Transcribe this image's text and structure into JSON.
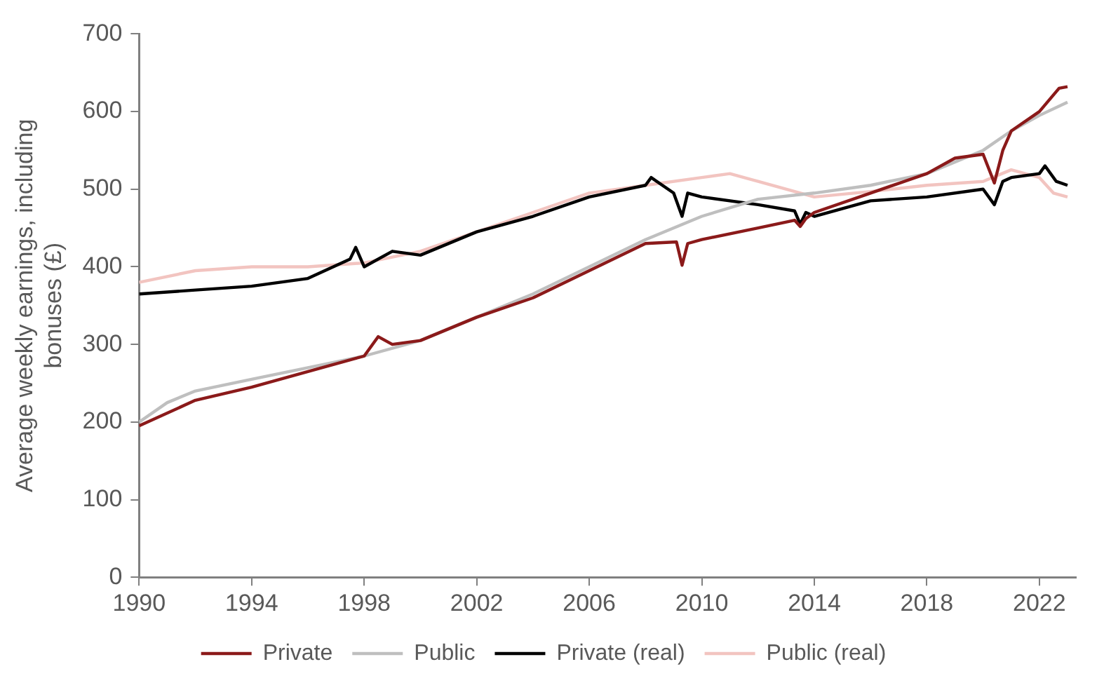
{
  "chart_data": {
    "type": "line",
    "ylabel": "Average weekly earnings, including bonuses (£)",
    "xlim": [
      1990,
      2023.3
    ],
    "xticks": [
      1990,
      1994,
      1998,
      2002,
      2006,
      2010,
      2014,
      2018,
      2022
    ],
    "ylim": [
      0,
      700
    ],
    "yticks": [
      0,
      100,
      200,
      300,
      400,
      500,
      600,
      700
    ],
    "grid": false,
    "legend": "bottom",
    "marker": "none",
    "line_style": "solid",
    "series": [
      {
        "name": "Private",
        "color": "#8b1a1a",
        "x": [
          1990,
          1992,
          1994,
          1996,
          1998,
          1998.5,
          1999,
          2000,
          2002,
          2004,
          2006,
          2008,
          2009.1,
          2009.3,
          2009.5,
          2010,
          2012,
          2013.3,
          2013.5,
          2013.7,
          2014,
          2016,
          2018,
          2019,
          2020,
          2020.4,
          2020.7,
          2021,
          2022,
          2022.7,
          2023
        ],
        "values": [
          195,
          228,
          245,
          265,
          285,
          310,
          300,
          305,
          335,
          360,
          395,
          430,
          432,
          402,
          430,
          435,
          450,
          460,
          452,
          462,
          470,
          495,
          520,
          540,
          545,
          508,
          550,
          575,
          600,
          630,
          632
        ]
      },
      {
        "name": "Public",
        "color": "#bfbfbf",
        "x": [
          1990,
          1991,
          1992,
          1994,
          1996,
          1998,
          2000,
          2002,
          2004,
          2006,
          2008,
          2010,
          2012,
          2014,
          2016,
          2018,
          2020,
          2021,
          2022,
          2023
        ],
        "values": [
          200,
          225,
          240,
          255,
          270,
          285,
          305,
          335,
          365,
          400,
          435,
          465,
          487,
          495,
          505,
          520,
          550,
          575,
          595,
          612
        ]
      },
      {
        "name": "Private (real)",
        "color": "#000000",
        "x": [
          1990,
          1992,
          1994,
          1996,
          1997.5,
          1997.7,
          1998,
          1999,
          2000,
          2002,
          2004,
          2006,
          2008,
          2008.2,
          2009,
          2009.3,
          2009.5,
          2010,
          2012,
          2013.3,
          2013.5,
          2013.7,
          2014,
          2016,
          2018,
          2020,
          2020.4,
          2020.7,
          2021,
          2022,
          2022.2,
          2022.6,
          2023
        ],
        "values": [
          365,
          370,
          375,
          385,
          410,
          425,
          400,
          420,
          415,
          445,
          465,
          490,
          505,
          515,
          495,
          465,
          495,
          490,
          480,
          472,
          455,
          470,
          465,
          485,
          490,
          500,
          480,
          510,
          515,
          520,
          530,
          510,
          505
        ]
      },
      {
        "name": "Public (real)",
        "color": "#f2c4c0",
        "x": [
          1990,
          1992,
          1994,
          1996,
          1998,
          2000,
          2002,
          2004,
          2006,
          2008,
          2010,
          2011,
          2012,
          2014,
          2016,
          2018,
          2020,
          2021,
          2022,
          2022.5,
          2023
        ],
        "values": [
          380,
          395,
          400,
          400,
          405,
          420,
          445,
          470,
          495,
          505,
          515,
          520,
          510,
          490,
          497,
          505,
          510,
          525,
          515,
          495,
          490
        ]
      }
    ]
  }
}
